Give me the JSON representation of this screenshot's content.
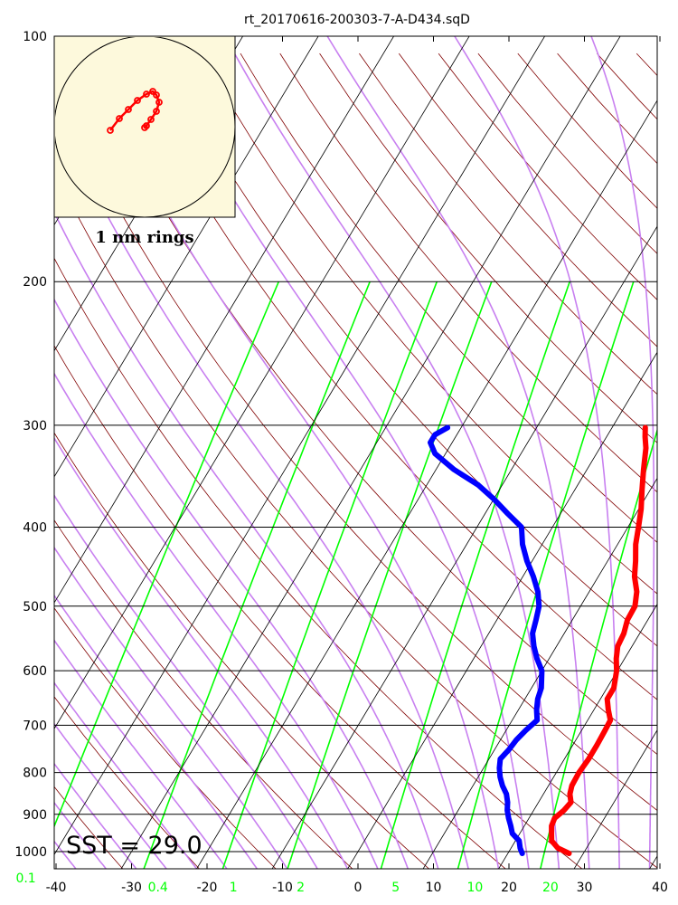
{
  "chart_data": {
    "type": "line",
    "title": "rt_20170616-200303-7-A-D434.sqD",
    "pressure_ticks": [
      "100",
      "200",
      "300",
      "400",
      "500",
      "600",
      "700",
      "800",
      "900",
      "1000"
    ],
    "temperature_ticks": [
      "-40",
      "-30",
      "-20",
      "-10",
      "0",
      "10",
      "20",
      "30",
      "40"
    ],
    "xlim": [
      -40,
      40
    ],
    "ylim": [
      1000,
      100
    ],
    "y_scale": "log",
    "mixing_ratio_labels": [
      {
        "label": "0.1",
        "value": -44
      },
      {
        "label": "0.4",
        "value": -26.5
      },
      {
        "label": "1",
        "value": -16.5
      },
      {
        "label": "2",
        "value": -7.6
      },
      {
        "label": "5",
        "value": 5
      },
      {
        "label": "10",
        "value": 15.5
      },
      {
        "label": "20",
        "value": 25.5
      }
    ],
    "annotation": "SST = 29.0",
    "series": [
      {
        "color": "#ff0000",
        "points": [
          {
            "p": 1005,
            "t": 28.1
          },
          {
            "p": 990,
            "t": 26.2
          },
          {
            "p": 970,
            "t": 24.8
          },
          {
            "p": 950,
            "t": 24.2
          },
          {
            "p": 930,
            "t": 23.6
          },
          {
            "p": 910,
            "t": 23.4
          },
          {
            "p": 890,
            "t": 24.0
          },
          {
            "p": 870,
            "t": 24.3
          },
          {
            "p": 850,
            "t": 23.5
          },
          {
            "p": 830,
            "t": 23.1
          },
          {
            "p": 800,
            "t": 23.0
          },
          {
            "p": 770,
            "t": 23.2
          },
          {
            "p": 740,
            "t": 23.2
          },
          {
            "p": 710,
            "t": 23.1
          },
          {
            "p": 690,
            "t": 23.0
          },
          {
            "p": 670,
            "t": 21.9
          },
          {
            "p": 650,
            "t": 20.9
          },
          {
            "p": 630,
            "t": 20.9
          },
          {
            "p": 600,
            "t": 19.9
          },
          {
            "p": 580,
            "t": 18.9
          },
          {
            "p": 560,
            "t": 18.1
          },
          {
            "p": 540,
            "t": 17.9
          },
          {
            "p": 520,
            "t": 17.3
          },
          {
            "p": 500,
            "t": 17.2
          },
          {
            "p": 480,
            "t": 16.3
          },
          {
            "p": 460,
            "t": 14.8
          },
          {
            "p": 440,
            "t": 13.7
          },
          {
            "p": 420,
            "t": 12.4
          },
          {
            "p": 400,
            "t": 11.4
          },
          {
            "p": 380,
            "t": 10.3
          },
          {
            "p": 360,
            "t": 8.9
          },
          {
            "p": 340,
            "t": 7.5
          },
          {
            "p": 320,
            "t": 6.1
          },
          {
            "p": 310,
            "t": 5.1
          },
          {
            "p": 302,
            "t": 4.4
          }
        ]
      },
      {
        "color": "#0000ff",
        "points": [
          {
            "p": 1005,
            "t": 21.9
          },
          {
            "p": 990,
            "t": 21.2
          },
          {
            "p": 970,
            "t": 20.5
          },
          {
            "p": 950,
            "t": 19.0
          },
          {
            "p": 930,
            "t": 18.2
          },
          {
            "p": 910,
            "t": 17.3
          },
          {
            "p": 890,
            "t": 16.5
          },
          {
            "p": 870,
            "t": 15.9
          },
          {
            "p": 850,
            "t": 15.1
          },
          {
            "p": 830,
            "t": 13.9
          },
          {
            "p": 810,
            "t": 12.9
          },
          {
            "p": 790,
            "t": 12.1
          },
          {
            "p": 770,
            "t": 11.5
          },
          {
            "p": 750,
            "t": 11.9
          },
          {
            "p": 730,
            "t": 12.1
          },
          {
            "p": 710,
            "t": 12.6
          },
          {
            "p": 690,
            "t": 13.3
          },
          {
            "p": 670,
            "t": 12.4
          },
          {
            "p": 650,
            "t": 11.7
          },
          {
            "p": 630,
            "t": 11.3
          },
          {
            "p": 600,
            "t": 10.0
          },
          {
            "p": 580,
            "t": 8.4
          },
          {
            "p": 560,
            "t": 7.0
          },
          {
            "p": 540,
            "t": 5.8
          },
          {
            "p": 520,
            "t": 5.2
          },
          {
            "p": 500,
            "t": 4.5
          },
          {
            "p": 480,
            "t": 3.2
          },
          {
            "p": 460,
            "t": 1.4
          },
          {
            "p": 440,
            "t": -0.7
          },
          {
            "p": 420,
            "t": -2.6
          },
          {
            "p": 400,
            "t": -4.1
          },
          {
            "p": 385,
            "t": -7.0
          },
          {
            "p": 370,
            "t": -9.9
          },
          {
            "p": 355,
            "t": -13.2
          },
          {
            "p": 340,
            "t": -17.6
          },
          {
            "p": 325,
            "t": -21.4
          },
          {
            "p": 315,
            "t": -22.9
          },
          {
            "p": 308,
            "t": -22.9
          },
          {
            "p": 302,
            "t": -21.8
          }
        ]
      }
    ]
  },
  "hodograph": {
    "label": "1 nm rings",
    "points": [
      {
        "x": -0.38,
        "y": -0.04
      },
      {
        "x": -0.28,
        "y": 0.09
      },
      {
        "x": -0.18,
        "y": 0.19
      },
      {
        "x": -0.08,
        "y": 0.29
      },
      {
        "x": 0.02,
        "y": 0.36
      },
      {
        "x": 0.09,
        "y": 0.39
      },
      {
        "x": 0.13,
        "y": 0.35
      },
      {
        "x": 0.16,
        "y": 0.27
      },
      {
        "x": 0.13,
        "y": 0.17
      },
      {
        "x": 0.07,
        "y": 0.08
      },
      {
        "x": 0.02,
        "y": 0.01
      },
      {
        "x": 0.0,
        "y": -0.01
      }
    ]
  },
  "colors": {
    "temperature": "#ff0000",
    "dewpoint": "#0000ff",
    "mixing_ratio": "#00ff00",
    "moist_adiabat": "#c880f0",
    "dry_adiabat": "#800000",
    "isotherm": "#000000",
    "hodograph_bg": "#fdf9dc"
  }
}
